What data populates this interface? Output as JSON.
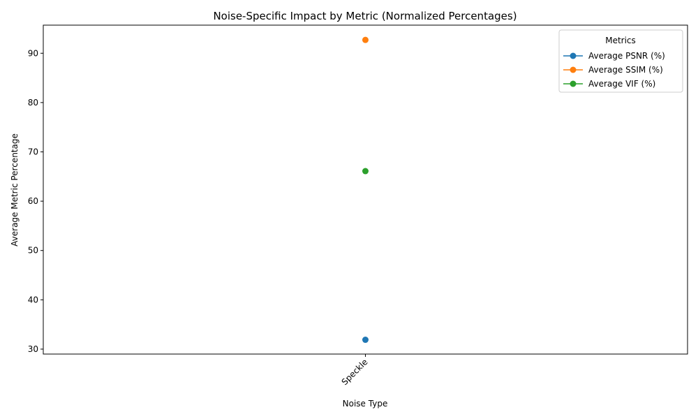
{
  "chart_data": {
    "type": "line",
    "title": "Noise-Specific Impact by Metric (Normalized Percentages)",
    "xlabel": "Noise Type",
    "ylabel": "Average Metric Percentage",
    "categories": [
      "Speckle"
    ],
    "ylim": [
      29,
      95.7
    ],
    "yticks": [
      30,
      40,
      50,
      60,
      70,
      80,
      90
    ],
    "grid": false,
    "legend": {
      "title": "Metrics",
      "placement": "top-right"
    },
    "series": [
      {
        "name": "Average PSNR (%)",
        "values": [
          31.9
        ],
        "color": "#1f77b4"
      },
      {
        "name": "Average SSIM (%)",
        "values": [
          92.7
        ],
        "color": "#ff7f0e"
      },
      {
        "name": "Average VIF (%)",
        "values": [
          66.1
        ],
        "color": "#2ca02c"
      }
    ]
  }
}
